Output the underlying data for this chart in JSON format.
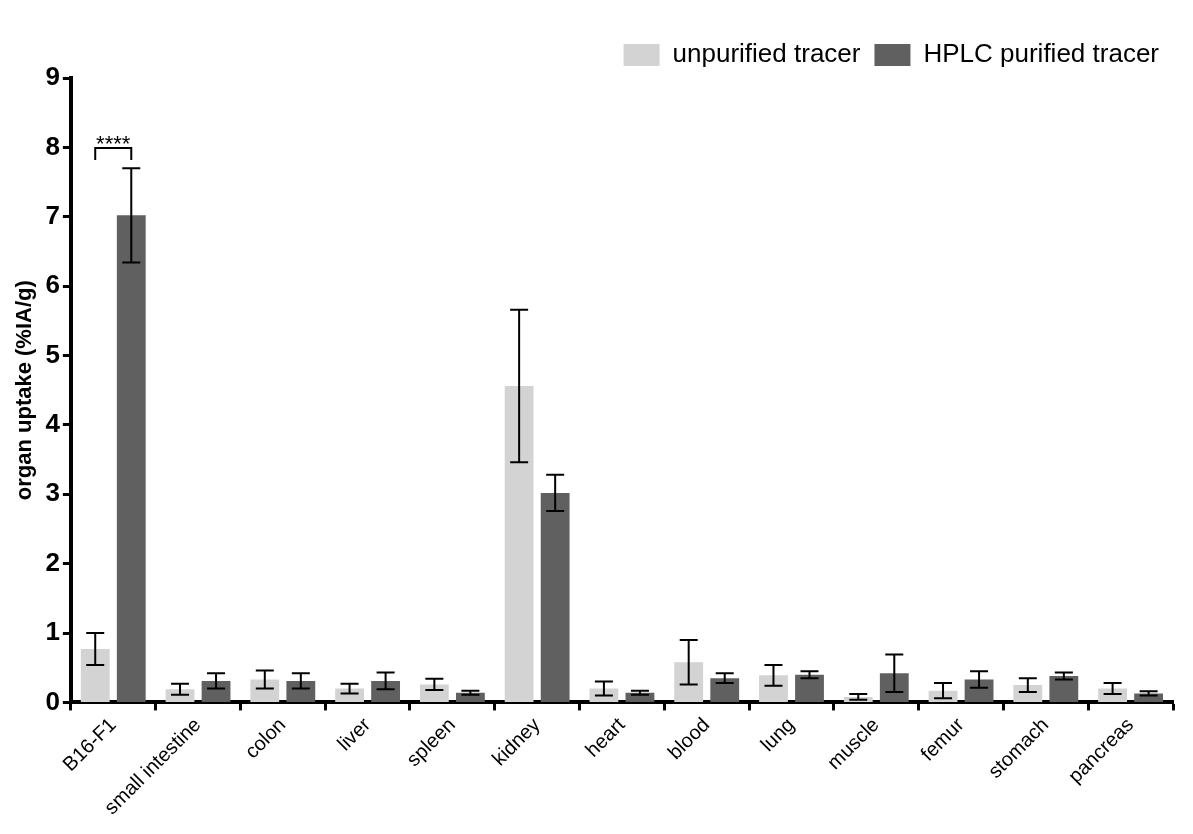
{
  "chart_data": {
    "type": "bar",
    "ylabel": "organ uptake (%IA/g)",
    "categories": [
      "B16-F1",
      "small intestine",
      "colon",
      "liver",
      "spleen",
      "kidney",
      "heart",
      "blood",
      "lung",
      "muscle",
      "femur",
      "stomach",
      "pancreas"
    ],
    "series": [
      {
        "name": "unpurified tracer",
        "color": "#d3d3d3",
        "values": [
          0.77,
          0.19,
          0.33,
          0.2,
          0.26,
          4.56,
          0.2,
          0.58,
          0.39,
          0.08,
          0.17,
          0.25,
          0.2
        ],
        "errors": [
          0.23,
          0.08,
          0.13,
          0.07,
          0.08,
          1.1,
          0.1,
          0.32,
          0.15,
          0.04,
          0.11,
          0.1,
          0.08
        ]
      },
      {
        "name": "HPLC purified tracer",
        "color": "#606060",
        "values": [
          7.02,
          0.31,
          0.31,
          0.31,
          0.14,
          3.02,
          0.14,
          0.35,
          0.4,
          0.42,
          0.33,
          0.38,
          0.13
        ],
        "errors": [
          0.68,
          0.11,
          0.11,
          0.12,
          0.03,
          0.26,
          0.03,
          0.07,
          0.05,
          0.27,
          0.12,
          0.05,
          0.03
        ]
      }
    ],
    "ylim": [
      0,
      9
    ],
    "yticks": [
      0,
      1,
      2,
      3,
      4,
      5,
      6,
      7,
      8,
      9
    ],
    "grid": false,
    "legend": "top right",
    "annotations": [
      "****"
    ]
  }
}
